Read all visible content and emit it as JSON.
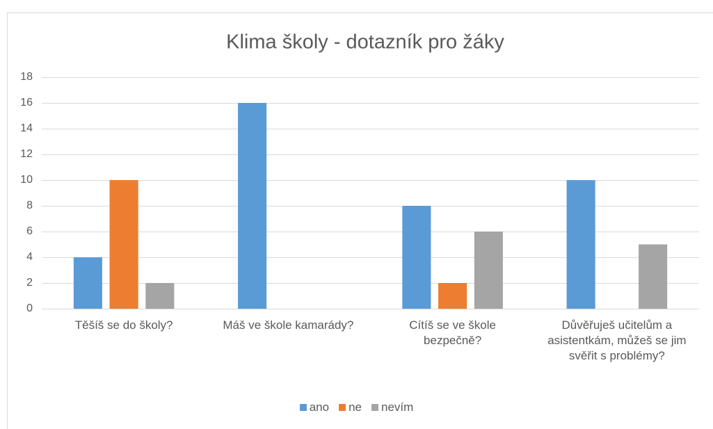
{
  "chart_data": {
    "type": "bar",
    "title": "Klima školy - dotazník pro žáky",
    "categories": [
      "Těšíš se do školy?",
      "Máš ve škole kamarády?",
      "Cítíš se ve škole bezpečně?",
      "Důvěřuješ učitelům a asistentkám, můžeš se jim svěřit s problémy?"
    ],
    "series": [
      {
        "name": "ano",
        "color": "#5b9bd5",
        "values": [
          4,
          16,
          8,
          10
        ]
      },
      {
        "name": "ne",
        "color": "#ed7d31",
        "values": [
          10,
          0,
          2,
          0
        ]
      },
      {
        "name": "nevím",
        "color": "#a5a5a5",
        "values": [
          2,
          0,
          6,
          5
        ]
      }
    ],
    "ylim": [
      0,
      18
    ],
    "yticks": [
      0,
      2,
      4,
      6,
      8,
      10,
      12,
      14,
      16,
      18
    ],
    "grid": true,
    "legend": "bottom"
  }
}
